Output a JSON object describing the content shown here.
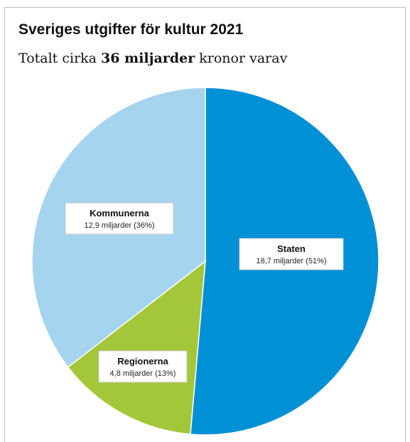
{
  "chart_data": {
    "type": "pie",
    "title": "Sveriges utgifter för kultur 2021",
    "subtitle": {
      "prefix": "Totalt cirka ",
      "emphasis": "36 miljarder",
      "suffix": " kronor varav"
    },
    "slices": [
      {
        "name": "Staten",
        "value": 18.7,
        "value_label": "18,7 miljarder (51%)",
        "color": "#0090d5"
      },
      {
        "name": "Regionerna",
        "value": 4.8,
        "value_label": "4,8 miljarder (13%)",
        "color": "#a4c63a"
      },
      {
        "name": "Kommunerna",
        "value": 12.9,
        "value_label": "12,9 miljarder (36%)",
        "color": "#a5d4ef"
      }
    ]
  }
}
